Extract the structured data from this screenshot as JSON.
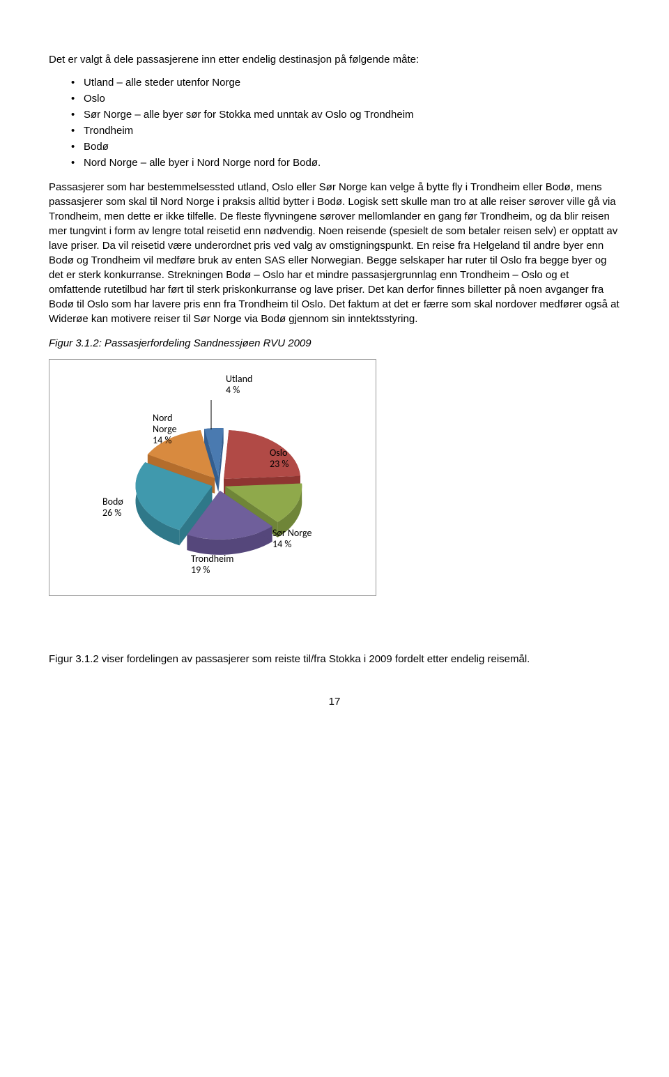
{
  "intro": "Det er valgt å dele passasjerene inn etter endelig destinasjon på følgende måte:",
  "bullets": [
    "Utland – alle steder utenfor Norge",
    "Oslo",
    "Sør Norge – alle byer sør for Stokka med unntak av Oslo og Trondheim",
    "Trondheim",
    "Bodø",
    "Nord Norge – alle byer i Nord Norge nord for Bodø."
  ],
  "para1": "Passasjerer som har bestemmelsessted utland, Oslo eller Sør Norge kan velge å bytte fly i Trondheim eller Bodø, mens passasjerer som skal til Nord Norge i praksis alltid bytter i Bodø. Logisk sett skulle man tro at alle reiser sørover ville gå via Trondheim, men dette er ikke tilfelle. De fleste flyvningene sørover mellomlander en gang før Trondheim, og da blir reisen mer tungvint i form av lengre total reisetid enn nødvendig. Noen reisende (spesielt de som betaler reisen selv) er opptatt av lave priser. Da vil reisetid være underordnet pris ved valg av omstigningspunkt. En reise fra Helgeland til andre byer enn Bodø og Trondheim vil medføre bruk av enten SAS eller Norwegian. Begge selskaper har ruter til Oslo fra begge byer og det er sterk konkurranse. Strekningen Bodø – Oslo har et mindre passasjergrunnlag enn Trondheim – Oslo og et omfattende rutetilbud har ført til sterk priskonkurranse og lave priser. Det kan derfor finnes billetter på noen avganger fra Bodø til Oslo som har lavere pris enn fra Trondheim til Oslo. Det faktum at det er færre som skal nordover medfører også at Widerøe kan motivere reiser til Sør Norge via Bodø gjennom sin inntektsstyring.",
  "fig_caption": "Figur 3.1.2: Passasjerfordeling Sandnessjøen RVU 2009",
  "chart": {
    "type": "pie",
    "explode_gap": 10,
    "background": "#ffffff",
    "border_color": "#999999",
    "label_font_family": "Calibri, Arial, sans-serif",
    "label_font_size": 14,
    "label_color": "#000000",
    "slices": [
      {
        "name": "Utland",
        "value": 4,
        "label1": "Utland",
        "label2": "4 %",
        "top_color": "#4a7ab0",
        "side_color": "#335e8f"
      },
      {
        "name": "Oslo",
        "value": 23,
        "label1": "Oslo",
        "label2": "23 %",
        "top_color": "#b14a46",
        "side_color": "#8e3531"
      },
      {
        "name": "Sør Norge",
        "value": 14,
        "label1": "Sør Norge",
        "label2": "14 %",
        "top_color": "#8fa94b",
        "side_color": "#6f8538"
      },
      {
        "name": "Trondheim",
        "value": 19,
        "label1": "Trondheim",
        "label2": "19 %",
        "top_color": "#6f5f9b",
        "side_color": "#55477b"
      },
      {
        "name": "Bodø",
        "value": 26,
        "label1": "Bodø",
        "label2": "26 %",
        "top_color": "#4099ad",
        "side_color": "#2f7889"
      },
      {
        "name": "Nord Norge",
        "value": 14,
        "label1": "Nord",
        "label2": "Norge",
        "label3": "14 %",
        "top_color": "#d88a3f",
        "side_color": "#b46d2c"
      }
    ]
  },
  "closing": "Figur 3.1.2 viser fordelingen av passasjerer som reiste til/fra Stokka i 2009 fordelt etter endelig reisemål.",
  "page_number": "17"
}
